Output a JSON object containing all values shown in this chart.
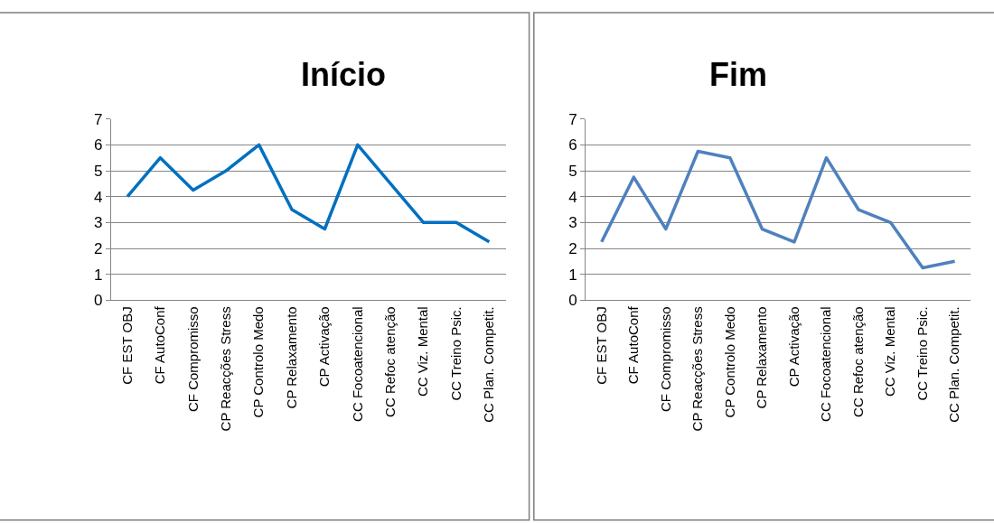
{
  "chart_data": [
    {
      "type": "line",
      "title": "Início",
      "categories": [
        "CF EST OBJ",
        "CF AutoConf",
        "CF Compromisso",
        "CP Reacções Stress",
        "CP Controlo Medo",
        "CP Relaxamento",
        "CP Activação",
        "CC Focoatencional",
        "CC Refoc atenção",
        "CC Viz. Mental",
        "CC Treino Psic.",
        "CC Plan. Competit."
      ],
      "series": [
        {
          "color": "#0070c0",
          "values": [
            4,
            5.5,
            4.25,
            5,
            6,
            3.5,
            2.75,
            6,
            4.5,
            3,
            3,
            2.25
          ]
        }
      ],
      "ylim": [
        0,
        7
      ],
      "yticks": [
        0,
        1,
        2,
        3,
        4,
        5,
        6,
        7
      ],
      "grid": "y",
      "marker": "none"
    },
    {
      "type": "line",
      "title": "Fim",
      "categories": [
        "CF EST OBJ",
        "CF AutoConf",
        "CF Compromisso",
        "CP Reacções Stress",
        "CP Controlo Medo",
        "CP Relaxamento",
        "CP Activação",
        "CC Focoatencional",
        "CC Refoc atenção",
        "CC Viz. Mental",
        "CC Treino Psic.",
        "CC Plan. Competit."
      ],
      "series": [
        {
          "color": "#4f81bd",
          "values": [
            2.25,
            4.75,
            2.75,
            5.75,
            5.5,
            2.75,
            2.25,
            5.5,
            3.5,
            3,
            1.25,
            1.5
          ]
        }
      ],
      "ylim": [
        0,
        7
      ],
      "yticks": [
        0,
        1,
        2,
        3,
        4,
        5,
        6,
        7
      ],
      "grid": "y",
      "marker": "none"
    }
  ]
}
